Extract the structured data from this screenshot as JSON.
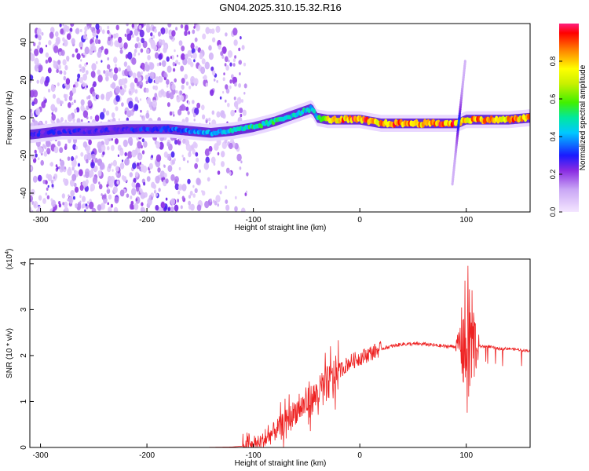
{
  "title": "GN04.2025.310.15.32.R16",
  "chart_data": [
    {
      "type": "heatmap",
      "xlabel": "Height of straight line (km)",
      "ylabel": "Frequency (Hz)",
      "xlim": [
        -310,
        160
      ],
      "ylim": [
        -50,
        50
      ],
      "x_ticks": [
        -300,
        -200,
        -100,
        0,
        100
      ],
      "y_ticks": [
        -40,
        -20,
        0,
        20,
        40
      ],
      "colorbar": {
        "label": "Normalized spectral amplitude",
        "range": [
          0,
          1
        ],
        "ticks": [
          0.0,
          0.2,
          0.4,
          0.6,
          0.8
        ],
        "tick_labels": [
          "0.0",
          "0.2",
          "0.4",
          "0.6",
          "0.8"
        ]
      },
      "ridge_frequency": {
        "x": [
          -310,
          -280,
          -250,
          -220,
          -200,
          -180,
          -160,
          -140,
          -120,
          -100,
          -80,
          -60,
          -45,
          -40,
          -30,
          -20,
          -10,
          0,
          10,
          20,
          40,
          60,
          80,
          92,
          100,
          120,
          140,
          160
        ],
        "y": [
          -9,
          -7,
          -7,
          -6,
          -6,
          -6,
          -7,
          -8,
          -7,
          -5,
          -2,
          2,
          5,
          0,
          -1,
          -1,
          -1,
          -1,
          -2,
          -3,
          -3,
          -3,
          -3,
          -3,
          -1,
          -1,
          -1,
          0
        ]
      },
      "ridge_amplitude": [
        0.3,
        0.3,
        0.3,
        0.3,
        0.35,
        0.35,
        0.4,
        0.45,
        0.5,
        0.55,
        0.55,
        0.5,
        0.5,
        0.5,
        0.8,
        0.9,
        0.95,
        0.95,
        0.95,
        0.9,
        0.95,
        0.95,
        0.95,
        0.95,
        0.9,
        0.9,
        0.9,
        0.9
      ],
      "noise_region_x": [
        -310,
        -120
      ],
      "transient_x": 93,
      "transient_frequency_range": [
        -35,
        30
      ]
    },
    {
      "type": "line",
      "xlabel": "Height of straight line (km)",
      "ylabel": "SNR (10 * v/v)",
      "y_multiplier": "(x10",
      "y_multiplier_exp": "4",
      "y_multiplier_close": ")",
      "xlim": [
        -310,
        160
      ],
      "ylim": [
        0,
        4.1
      ],
      "x_ticks": [
        -300,
        -200,
        -100,
        0,
        100
      ],
      "y_ticks": [
        0,
        1,
        2,
        3,
        4
      ],
      "color": "#ee2222",
      "series": [
        {
          "x": [
            -310,
            -250,
            -200,
            -150,
            -120,
            -100,
            -90,
            -80,
            -70,
            -60,
            -50,
            -40,
            -30,
            -20,
            -10,
            0,
            10,
            20,
            30,
            40,
            60,
            80,
            90,
            95,
            100,
            105,
            110,
            120,
            130,
            140,
            160
          ],
          "y": [
            0.0,
            0.0,
            0.0,
            0.0,
            0.01,
            0.05,
            0.15,
            0.35,
            0.55,
            0.8,
            0.95,
            1.15,
            1.4,
            1.65,
            1.85,
            1.95,
            2.05,
            2.15,
            2.2,
            2.25,
            2.25,
            2.2,
            2.2,
            2.3,
            2.2,
            2.3,
            2.2,
            2.2,
            2.15,
            2.15,
            2.1
          ]
        }
      ]
    }
  ]
}
